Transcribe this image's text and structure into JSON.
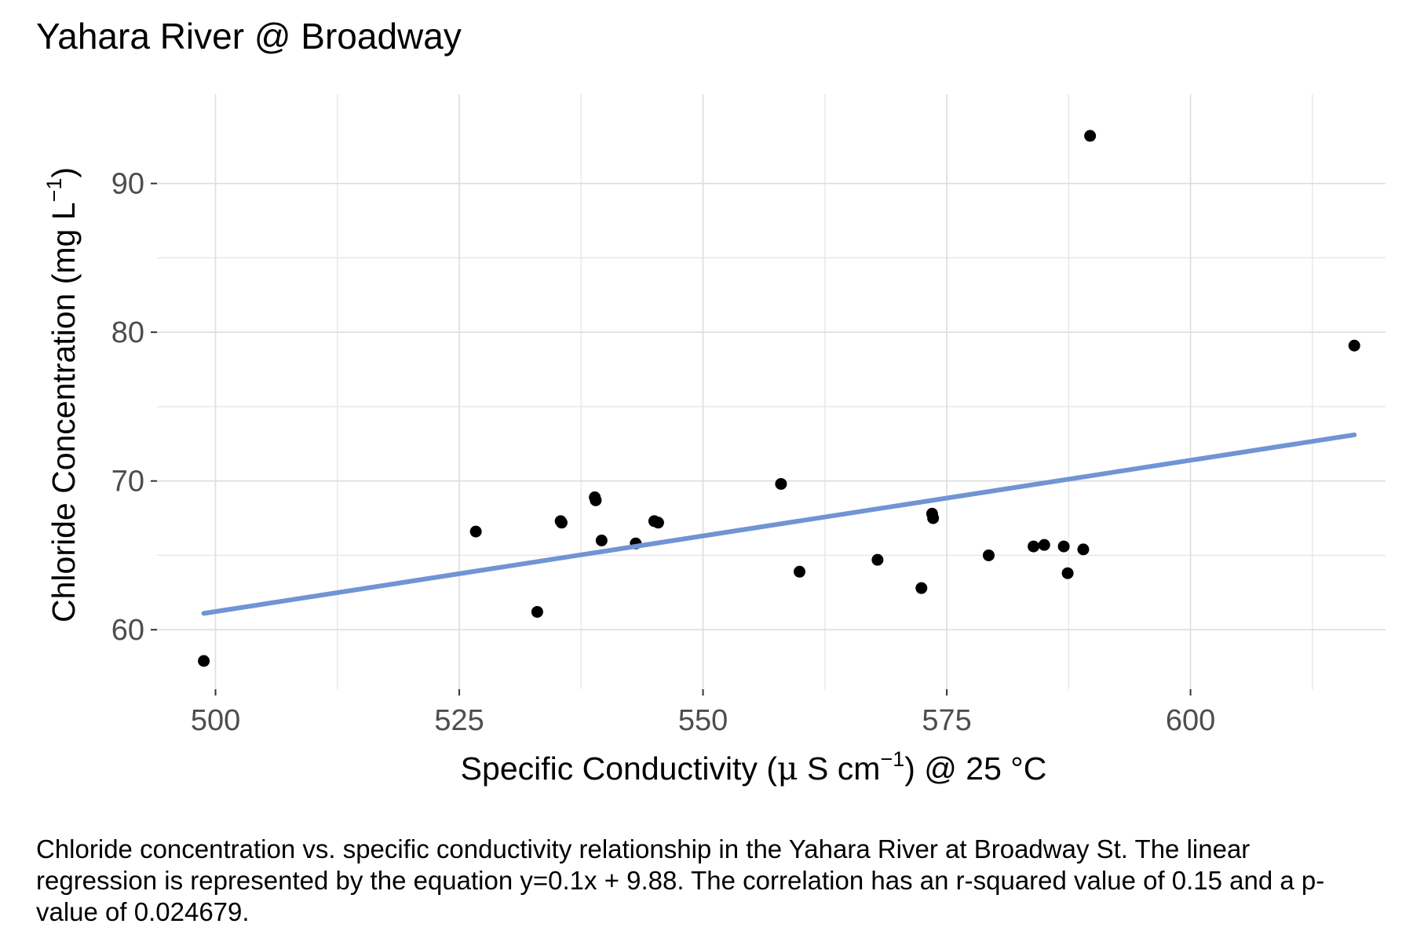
{
  "chart_data": {
    "type": "scatter",
    "title": "Yahara River @ Broadway",
    "xlabel": {
      "main": "Specific Conductivity (",
      "mu": "μ",
      "unit": " S cm",
      "exponent": "−1",
      "suffix": ") @ 25 °C"
    },
    "ylabel": {
      "main": "Chloride Concentration (mg L",
      "exponent": "−1",
      "suffix": ")"
    },
    "xlim": [
      494,
      620
    ],
    "ylim": [
      56.0,
      96.0
    ],
    "x_ticks": [
      500,
      525,
      550,
      575,
      600
    ],
    "y_ticks": [
      60,
      70,
      80,
      90
    ],
    "grid": true,
    "points": [
      {
        "x": 498.8,
        "y": 57.9
      },
      {
        "x": 526.7,
        "y": 66.6
      },
      {
        "x": 533.0,
        "y": 61.2
      },
      {
        "x": 535.4,
        "y": 67.3
      },
      {
        "x": 535.5,
        "y": 67.2
      },
      {
        "x": 538.9,
        "y": 68.9
      },
      {
        "x": 539.0,
        "y": 68.7
      },
      {
        "x": 539.6,
        "y": 66.0
      },
      {
        "x": 543.1,
        "y": 65.8
      },
      {
        "x": 545.0,
        "y": 67.3
      },
      {
        "x": 545.4,
        "y": 67.2
      },
      {
        "x": 558.0,
        "y": 69.8
      },
      {
        "x": 559.9,
        "y": 63.9
      },
      {
        "x": 567.9,
        "y": 64.7
      },
      {
        "x": 572.4,
        "y": 62.8
      },
      {
        "x": 573.5,
        "y": 67.8
      },
      {
        "x": 573.6,
        "y": 67.5
      },
      {
        "x": 579.3,
        "y": 65.0
      },
      {
        "x": 583.9,
        "y": 65.6
      },
      {
        "x": 585.0,
        "y": 65.7
      },
      {
        "x": 587.0,
        "y": 65.6
      },
      {
        "x": 587.4,
        "y": 63.8
      },
      {
        "x": 589.0,
        "y": 65.4
      },
      {
        "x": 589.7,
        "y": 93.2
      },
      {
        "x": 616.8,
        "y": 79.1
      }
    ],
    "regression": {
      "x": [
        498.8,
        616.8
      ],
      "y": [
        61.1,
        73.1
      ]
    },
    "colors": {
      "points": "#000000",
      "regression": "#7094d4",
      "grid": "#dddddd",
      "tick_labels": "#4d4d4d"
    }
  },
  "caption": "Chloride concentration vs. specific conductivity relationship in the Yahara River at Broadway St. The linear regression is represented by the equation y=0.1x + 9.88. The correlation has an r-squared value of 0.15 and a p-value of 0.024679."
}
